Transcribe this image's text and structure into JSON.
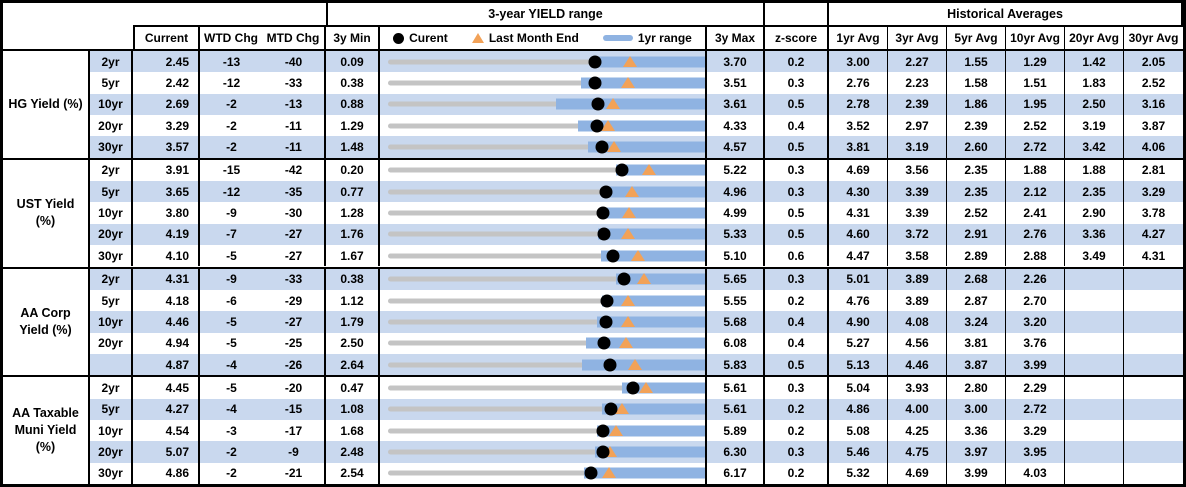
{
  "header": {
    "range_title": "3-year YIELD range",
    "historical_title": "Historical Averages",
    "col_current": "Current",
    "col_wtd": "WTD Chg",
    "col_mtd": "MTD Chg",
    "col_3y_min": "3y Min",
    "col_3y_max": "3y Max",
    "col_zscore": "z-score",
    "avg_cols": [
      "1yr Avg",
      "3yr Avg",
      "5yr Avg",
      "10yr Avg",
      "20yr Avg",
      "30yr Avg"
    ],
    "legend": [
      {
        "icon": "current-dot-icon",
        "label": "Curent"
      },
      {
        "icon": "last-month-end-triangle-icon",
        "label": "Last Month End"
      },
      {
        "icon": "one-year-range-bar-icon",
        "label": "1yr range"
      }
    ]
  },
  "colors": {
    "row_shade": "#c9d8ee",
    "range_bar_blue": "#8fb3e2",
    "track_gray": "#c4c4c4",
    "current_dot_black": "#000000",
    "last_month_orange": "#f2a258"
  },
  "chart_data": {
    "type": "bullet-range-table",
    "description": "Each row is a bullet chart scaled from its own 3y Min to 3y Max; gray track = 3-year range, blue bar = 1yr range (1yr low to 3y max), black dot = Current, orange triangle = Last Month End (Current - MTD Chg bp).",
    "groups": [
      {
        "label": "HG Yield (%)",
        "rows": [
          {
            "tenor": "2yr",
            "current": "2.45",
            "wtd": "-13",
            "mtd": "-40",
            "min3y": "0.09",
            "max3y": "3.70",
            "low1yr": 2.4,
            "zscore": "0.2",
            "avgs": [
              "3.00",
              "2.27",
              "1.55",
              "1.29",
              "1.42",
              "2.05"
            ]
          },
          {
            "tenor": "5yr",
            "current": "2.42",
            "wtd": "-12",
            "mtd": "-33",
            "min3y": "0.38",
            "max3y": "3.51",
            "low1yr": 2.29,
            "zscore": "0.3",
            "avgs": [
              "2.76",
              "2.23",
              "1.58",
              "1.51",
              "1.83",
              "2.52"
            ]
          },
          {
            "tenor": "10yr",
            "current": "2.69",
            "wtd": "-2",
            "mtd": "-13",
            "min3y": "0.88",
            "max3y": "3.61",
            "low1yr": 2.33,
            "zscore": "0.5",
            "avgs": [
              "2.78",
              "2.39",
              "1.86",
              "1.95",
              "2.50",
              "3.16"
            ]
          },
          {
            "tenor": "20yr",
            "current": "3.29",
            "wtd": "-2",
            "mtd": "-11",
            "min3y": "1.29",
            "max3y": "4.33",
            "low1yr": 3.11,
            "zscore": "0.4",
            "avgs": [
              "3.52",
              "2.97",
              "2.39",
              "2.52",
              "3.19",
              "3.87"
            ]
          },
          {
            "tenor": "30yr",
            "current": "3.57",
            "wtd": "-2",
            "mtd": "-11",
            "min3y": "1.48",
            "max3y": "4.57",
            "low1yr": 3.43,
            "zscore": "0.5",
            "avgs": [
              "3.81",
              "3.19",
              "2.60",
              "2.72",
              "3.42",
              "4.06"
            ]
          }
        ]
      },
      {
        "label": "UST Yield (%)",
        "rows": [
          {
            "tenor": "2yr",
            "current": "3.91",
            "wtd": "-15",
            "mtd": "-42",
            "min3y": "0.20",
            "max3y": "5.22",
            "low1yr": 3.81,
            "zscore": "0.3",
            "avgs": [
              "4.69",
              "3.56",
              "2.35",
              "1.88",
              "1.88",
              "2.81"
            ]
          },
          {
            "tenor": "5yr",
            "current": "3.65",
            "wtd": "-12",
            "mtd": "-35",
            "min3y": "0.77",
            "max3y": "4.96",
            "low1yr": 3.64,
            "zscore": "0.3",
            "avgs": [
              "4.30",
              "3.39",
              "2.35",
              "2.12",
              "2.35",
              "3.29"
            ]
          },
          {
            "tenor": "10yr",
            "current": "3.80",
            "wtd": "-9",
            "mtd": "-30",
            "min3y": "1.28",
            "max3y": "4.99",
            "low1yr": 3.77,
            "zscore": "0.5",
            "avgs": [
              "4.31",
              "3.39",
              "2.52",
              "2.41",
              "2.90",
              "3.78"
            ]
          },
          {
            "tenor": "20yr",
            "current": "4.19",
            "wtd": "-7",
            "mtd": "-27",
            "min3y": "1.76",
            "max3y": "5.33",
            "low1yr": 4.12,
            "zscore": "0.5",
            "avgs": [
              "4.60",
              "3.72",
              "2.91",
              "2.76",
              "3.36",
              "4.27"
            ]
          },
          {
            "tenor": "30yr",
            "current": "4.10",
            "wtd": "-5",
            "mtd": "-27",
            "min3y": "1.67",
            "max3y": "5.10",
            "low1yr": 3.97,
            "zscore": "0.6",
            "avgs": [
              "4.47",
              "3.58",
              "2.89",
              "2.88",
              "3.49",
              "4.31"
            ]
          }
        ]
      },
      {
        "label": "AA Corp Yield (%)",
        "rows": [
          {
            "tenor": "2yr",
            "current": "4.31",
            "wtd": "-9",
            "mtd": "-33",
            "min3y": "0.38",
            "max3y": "5.65",
            "low1yr": 4.17,
            "zscore": "0.3",
            "avgs": [
              "5.01",
              "3.89",
              "2.68",
              "2.26",
              "",
              ""
            ]
          },
          {
            "tenor": "5yr",
            "current": "4.18",
            "wtd": "-6",
            "mtd": "-29",
            "min3y": "1.12",
            "max3y": "5.55",
            "low1yr": 4.11,
            "zscore": "0.2",
            "avgs": [
              "4.76",
              "3.89",
              "2.87",
              "2.70",
              "",
              ""
            ]
          },
          {
            "tenor": "10yr",
            "current": "4.46",
            "wtd": "-5",
            "mtd": "-27",
            "min3y": "1.79",
            "max3y": "5.68",
            "low1yr": 4.35,
            "zscore": "0.4",
            "avgs": [
              "4.90",
              "4.08",
              "3.24",
              "3.20",
              "",
              ""
            ]
          },
          {
            "tenor": "20yr",
            "current": "4.94",
            "wtd": "-5",
            "mtd": "-25",
            "min3y": "2.50",
            "max3y": "6.08",
            "low1yr": 4.74,
            "zscore": "0.4",
            "avgs": [
              "5.27",
              "4.56",
              "3.81",
              "3.76",
              "",
              ""
            ]
          },
          {
            "tenor": "",
            "current": "4.87",
            "wtd": "-4",
            "mtd": "-26",
            "min3y": "2.64",
            "max3y": "5.83",
            "low1yr": 4.59,
            "zscore": "0.5",
            "avgs": [
              "5.13",
              "4.46",
              "3.87",
              "3.99",
              "",
              ""
            ]
          }
        ]
      },
      {
        "label": "AA Taxable Muni Yield (%)",
        "rows": [
          {
            "tenor": "2yr",
            "current": "4.45",
            "wtd": "-5",
            "mtd": "-20",
            "min3y": "0.47",
            "max3y": "5.61",
            "low1yr": 4.27,
            "zscore": "0.3",
            "avgs": [
              "5.04",
              "3.93",
              "2.80",
              "2.29",
              "",
              ""
            ]
          },
          {
            "tenor": "5yr",
            "current": "4.27",
            "wtd": "-4",
            "mtd": "-15",
            "min3y": "1.08",
            "max3y": "5.61",
            "low1yr": 4.14,
            "zscore": "0.2",
            "avgs": [
              "4.86",
              "4.00",
              "3.00",
              "2.72",
              "",
              ""
            ]
          },
          {
            "tenor": "10yr",
            "current": "4.54",
            "wtd": "-3",
            "mtd": "-17",
            "min3y": "1.68",
            "max3y": "5.89",
            "low1yr": 4.45,
            "zscore": "0.2",
            "avgs": [
              "5.08",
              "4.25",
              "3.36",
              "3.29",
              "",
              ""
            ]
          },
          {
            "tenor": "20yr",
            "current": "5.07",
            "wtd": "-2",
            "mtd": "-9",
            "min3y": "2.48",
            "max3y": "6.30",
            "low1yr": 4.97,
            "zscore": "0.3",
            "avgs": [
              "5.46",
              "4.75",
              "3.97",
              "3.95",
              "",
              ""
            ]
          },
          {
            "tenor": "30yr",
            "current": "4.86",
            "wtd": "-2",
            "mtd": "-21",
            "min3y": "2.54",
            "max3y": "6.17",
            "low1yr": 4.79,
            "zscore": "0.2",
            "avgs": [
              "5.32",
              "4.69",
              "3.99",
              "4.03",
              "",
              ""
            ]
          }
        ]
      }
    ]
  }
}
